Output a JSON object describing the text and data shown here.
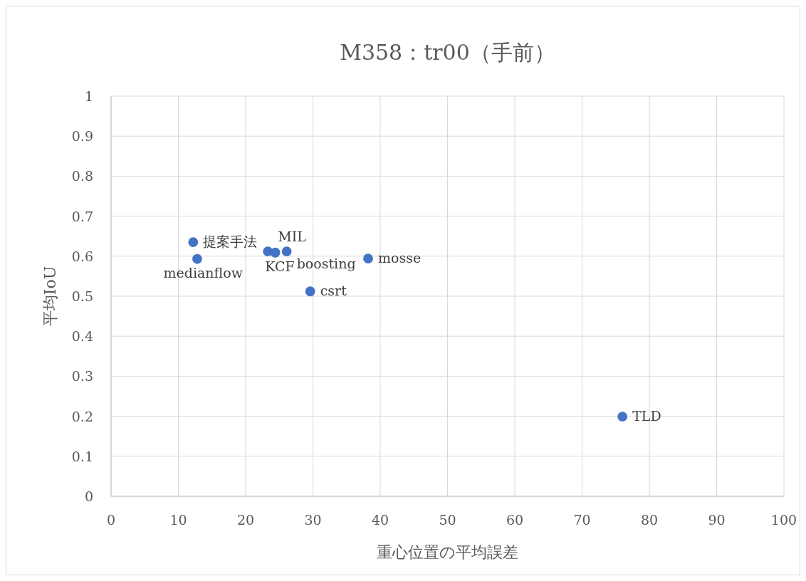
{
  "chart_data": {
    "type": "scatter",
    "title": "M358：tr00（手前）",
    "xlabel": "重心位置の平均誤差",
    "ylabel": "平均IoU",
    "xlim": [
      0,
      100
    ],
    "xticks": [
      0,
      10,
      20,
      30,
      40,
      50,
      60,
      70,
      80,
      90,
      100
    ],
    "ylim": [
      0,
      1
    ],
    "yticks": [
      0,
      0.1,
      0.2,
      0.3,
      0.4,
      0.5,
      0.6,
      0.7,
      0.8,
      0.9,
      1
    ],
    "grid": true,
    "legend": false,
    "marker": "circle",
    "series": [
      {
        "name": "提案手法",
        "color": "#4472c4",
        "x": [
          12.2
        ],
        "values": [
          0.635
        ]
      },
      {
        "name": "medianflow",
        "color": "#4472c4",
        "x": [
          12.8
        ],
        "values": [
          0.593
        ]
      },
      {
        "name": "MIL",
        "color": "#4472c4",
        "x": [
          23.3
        ],
        "values": [
          0.612
        ]
      },
      {
        "name": "KCF",
        "color": "#4472c4",
        "x": [
          24.4
        ],
        "values": [
          0.609
        ]
      },
      {
        "name": "boosting",
        "color": "#4472c4",
        "x": [
          26.1
        ],
        "values": [
          0.612
        ]
      },
      {
        "name": "mosse",
        "color": "#4472c4",
        "x": [
          38.2
        ],
        "values": [
          0.594
        ]
      },
      {
        "name": "csrt",
        "color": "#4472c4",
        "x": [
          29.6
        ],
        "values": [
          0.512
        ]
      },
      {
        "name": "TLD",
        "color": "#4472c4",
        "x": [
          76.0
        ],
        "values": [
          0.199
        ]
      }
    ]
  }
}
